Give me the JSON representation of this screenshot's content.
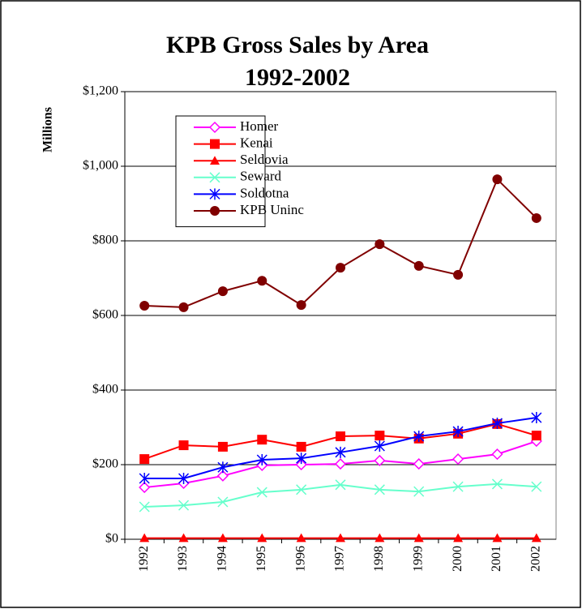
{
  "chart_data": {
    "type": "line",
    "title": "KPB Gross Sales by Area",
    "subtitle": "1992-2002",
    "y_label": "Millions",
    "categories": [
      "1992",
      "1993",
      "1994",
      "1995",
      "1996",
      "1997",
      "1998",
      "1999",
      "2000",
      "2001",
      "2002"
    ],
    "series": [
      {
        "name": "Homer",
        "color": "#ff00ff",
        "marker": "diamond",
        "values": [
          139,
          150,
          170,
          198,
          200,
          202,
          211,
          202,
          215,
          228,
          263
        ]
      },
      {
        "name": "Kenai",
        "color": "#ff0000",
        "marker": "square",
        "values": [
          215,
          252,
          248,
          267,
          248,
          276,
          278,
          270,
          283,
          309,
          278
        ]
      },
      {
        "name": "Seldovia",
        "color": "#ff0000",
        "marker": "triangle",
        "values": [
          3,
          3,
          3,
          3,
          3,
          3,
          3,
          3,
          3,
          3,
          3
        ]
      },
      {
        "name": "Seward",
        "color": "#66ffcc",
        "marker": "x",
        "values": [
          87,
          91,
          100,
          126,
          133,
          146,
          133,
          128,
          141,
          148,
          141
        ]
      },
      {
        "name": "Soldotna",
        "color": "#0000ff",
        "marker": "asterisk",
        "values": [
          163,
          163,
          193,
          213,
          217,
          233,
          250,
          276,
          289,
          311,
          326
        ]
      },
      {
        "name": "KPB Uninc",
        "color": "#800000",
        "marker": "circle",
        "values": [
          626,
          622,
          665,
          693,
          628,
          728,
          791,
          733,
          709,
          965,
          861
        ]
      }
    ],
    "ylim": [
      0,
      1200
    ],
    "yticks": [
      {
        "value": 0,
        "label": "$0"
      },
      {
        "value": 200,
        "label": "$200"
      },
      {
        "value": 400,
        "label": "$400"
      },
      {
        "value": 600,
        "label": "$600"
      },
      {
        "value": 800,
        "label": "$800"
      },
      {
        "value": 1000,
        "label": "$1,000"
      },
      {
        "value": 1200,
        "label": "$1,200"
      }
    ],
    "grid": true,
    "legend": "upper left"
  }
}
